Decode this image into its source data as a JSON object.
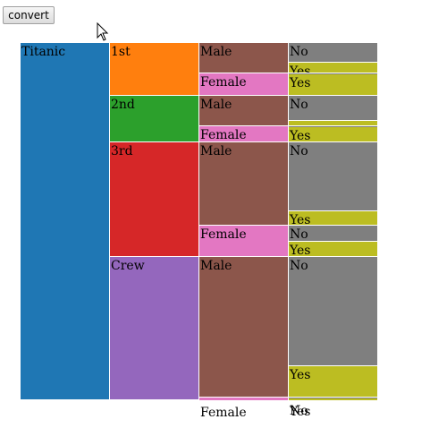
{
  "toolbar": {
    "convert_label": "convert"
  },
  "partition": {
    "root": {
      "label": "Titanic",
      "color": "#1f77b4"
    },
    "classes": [
      {
        "label": "1st",
        "color": "#ff7f0e"
      },
      {
        "label": "2nd",
        "color": "#2ca02c"
      },
      {
        "label": "3rd",
        "color": "#d62728"
      },
      {
        "label": "Crew",
        "color": "#9467bd"
      }
    ],
    "sex": {
      "male": "Male",
      "female": "Female",
      "male_color": "#8c564b",
      "female_color": "#e377c2"
    },
    "survived": {
      "no": "No",
      "yes": "Yes",
      "no_color": "#7f7f7f",
      "yes_color": "#bcbd22"
    }
  }
}
